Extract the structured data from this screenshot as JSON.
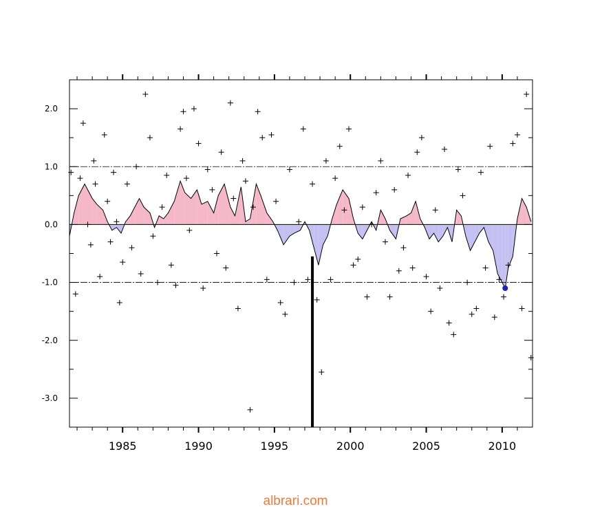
{
  "chart_data": {
    "type": "area",
    "title": "",
    "xlabel": "",
    "ylabel": "",
    "xlim": [
      1981.5,
      2012.0
    ],
    "ylim": [
      -3.5,
      2.5
    ],
    "x_ticks": [
      1985,
      1990,
      1995,
      2000,
      2005,
      2010
    ],
    "x_tick_labels": [
      "1985",
      "1990",
      "1995",
      "2000",
      "2005",
      "2010"
    ],
    "y_ticks": [
      2.0,
      1.0,
      0.0,
      -1.0,
      -2.0,
      -3.0
    ],
    "y_tick_labels": [
      "2.0",
      "1.0",
      "0.0",
      "-1.0",
      "-2.0",
      "-3.0"
    ],
    "reference_lines": [
      1.0,
      0.0,
      -1.0
    ],
    "vertical_marker": {
      "x": 1997.5,
      "y_from": -0.55,
      "y_to": -3.5
    },
    "highlight_point": {
      "x": 2010.2,
      "y": -1.1
    },
    "colors": {
      "positive_fill": "#f4b8c8",
      "negative_fill": "#c4c0f2",
      "line": "#000000",
      "highlight": "#1f1fbf"
    },
    "series": [
      {
        "values_x": [
          1981.5,
          1981.8,
          1982.1,
          1982.5,
          1983.0,
          1983.3,
          1983.7,
          1984.0,
          1984.3,
          1984.6,
          1984.9,
          1985.2,
          1985.5,
          1985.8,
          1986.1,
          1986.4,
          1986.8,
          1987.1,
          1987.4,
          1987.7,
          1988.0,
          1988.4,
          1988.8,
          1989.1,
          1989.5,
          1989.9,
          1990.2,
          1990.6,
          1991.0,
          1991.3,
          1991.7,
          1992.1,
          1992.4,
          1992.8,
          1993.1,
          1993.4,
          1993.8,
          1994.1,
          1994.5,
          1994.9,
          1995.2,
          1995.6,
          1996.0,
          1996.3,
          1996.7,
          1997.0,
          1997.3,
          1997.6,
          1997.9,
          1998.2,
          1998.5,
          1998.8,
          1999.1,
          1999.5,
          1999.9,
          2000.2,
          2000.5,
          2000.8,
          2001.1,
          2001.4,
          2001.7,
          2002.0,
          2002.3,
          2002.6,
          2003.0,
          2003.3,
          2003.7,
          2004.0,
          2004.3,
          2004.6,
          2004.9,
          2005.2,
          2005.5,
          2005.8,
          2006.1,
          2006.4,
          2006.7,
          2007.0,
          2007.3,
          2007.6,
          2007.9,
          2008.2,
          2008.5,
          2008.8,
          2009.1,
          2009.4,
          2009.7,
          2010.0,
          2010.2,
          2010.4,
          2010.7,
          2011.0,
          2011.3,
          2011.6,
          2011.9
        ],
        "values_y": [
          -0.2,
          0.2,
          0.5,
          0.7,
          0.45,
          0.35,
          0.25,
          0.05,
          -0.1,
          -0.05,
          -0.15,
          0.05,
          0.15,
          0.3,
          0.45,
          0.3,
          0.2,
          -0.05,
          0.15,
          0.1,
          0.2,
          0.4,
          0.75,
          0.55,
          0.45,
          0.6,
          0.35,
          0.4,
          0.2,
          0.5,
          0.7,
          0.3,
          0.15,
          0.65,
          0.05,
          0.1,
          0.7,
          0.5,
          0.2,
          0.05,
          -0.1,
          -0.35,
          -0.2,
          -0.15,
          -0.1,
          0.05,
          -0.1,
          -0.4,
          -0.7,
          -0.35,
          -0.2,
          0.1,
          0.35,
          0.6,
          0.45,
          0.1,
          -0.15,
          -0.25,
          -0.1,
          0.05,
          -0.1,
          0.25,
          0.1,
          -0.1,
          -0.25,
          0.1,
          0.15,
          0.2,
          0.4,
          0.1,
          -0.05,
          -0.25,
          -0.15,
          -0.3,
          -0.2,
          -0.05,
          -0.3,
          0.25,
          0.15,
          -0.2,
          -0.45,
          -0.3,
          -0.15,
          -0.05,
          -0.3,
          -0.45,
          -0.85,
          -1.0,
          -1.1,
          -0.75,
          -0.55,
          0.1,
          0.45,
          0.3,
          0.05
        ]
      }
    ],
    "scatter_x": [
      1981.6,
      1981.9,
      1982.2,
      1982.4,
      1982.7,
      1982.9,
      1983.1,
      1983.2,
      1983.5,
      1983.8,
      1984.0,
      1984.2,
      1984.4,
      1984.6,
      1984.8,
      1985.0,
      1985.3,
      1985.6,
      1985.9,
      1986.2,
      1986.5,
      1986.8,
      1987.0,
      1987.3,
      1987.6,
      1987.9,
      1988.2,
      1988.5,
      1988.8,
      1989.0,
      1989.2,
      1989.4,
      1989.7,
      1990.0,
      1990.3,
      1990.6,
      1990.9,
      1991.2,
      1991.5,
      1991.8,
      1992.1,
      1992.3,
      1992.6,
      1992.9,
      1993.1,
      1993.4,
      1993.6,
      1993.9,
      1994.2,
      1994.5,
      1994.8,
      1995.1,
      1995.4,
      1995.7,
      1996.0,
      1996.3,
      1996.6,
      1996.9,
      1997.2,
      1997.5,
      1997.8,
      1998.1,
      1998.4,
      1998.7,
      1999.0,
      1999.3,
      1999.6,
      1999.9,
      2000.2,
      2000.5,
      2000.8,
      2001.1,
      2001.4,
      2001.7,
      2002.0,
      2002.3,
      2002.6,
      2002.9,
      2003.2,
      2003.5,
      2003.8,
      2004.1,
      2004.4,
      2004.7,
      2005.0,
      2005.3,
      2005.6,
      2005.9,
      2006.2,
      2006.5,
      2006.8,
      2007.1,
      2007.4,
      2007.7,
      2008.0,
      2008.3,
      2008.6,
      2008.9,
      2009.2,
      2009.5,
      2009.8,
      2010.1,
      2010.4,
      2010.7,
      2011.0,
      2011.3,
      2011.6,
      2011.9
    ],
    "scatter_y": [
      0.9,
      -1.2,
      0.8,
      1.75,
      0.0,
      -0.35,
      1.1,
      0.7,
      -0.9,
      1.55,
      0.4,
      -0.3,
      0.9,
      0.05,
      -1.35,
      -0.65,
      0.7,
      -0.4,
      1.0,
      -0.85,
      2.25,
      1.5,
      -0.2,
      -1.0,
      0.3,
      0.85,
      -0.7,
      -1.05,
      1.65,
      1.95,
      0.8,
      -0.1,
      2.0,
      1.4,
      -1.1,
      0.95,
      0.6,
      -0.5,
      1.25,
      -0.75,
      2.1,
      0.45,
      -1.45,
      1.1,
      0.75,
      -3.2,
      0.3,
      1.95,
      1.5,
      -0.95,
      1.55,
      0.4,
      -1.35,
      -1.55,
      0.95,
      -1.0,
      0.05,
      1.65,
      -0.95,
      0.7,
      -1.3,
      -2.55,
      1.1,
      -0.95,
      0.8,
      1.35,
      0.25,
      1.65,
      -0.7,
      -0.6,
      0.3,
      -1.25,
      0.0,
      0.55,
      1.1,
      -0.3,
      -1.25,
      0.6,
      -0.8,
      -0.4,
      0.85,
      -0.75,
      1.25,
      1.5,
      -0.9,
      -1.5,
      0.25,
      -1.1,
      1.3,
      -1.7,
      -1.9,
      0.95,
      0.5,
      -1.0,
      -1.55,
      -1.45,
      0.9,
      -0.75,
      1.35,
      -1.6,
      -0.95,
      -1.25,
      -0.7,
      1.4,
      1.55,
      -1.45,
      2.25,
      -2.3
    ]
  },
  "watermark": {
    "text": "albrari.com",
    "color": "#f07a3a"
  }
}
